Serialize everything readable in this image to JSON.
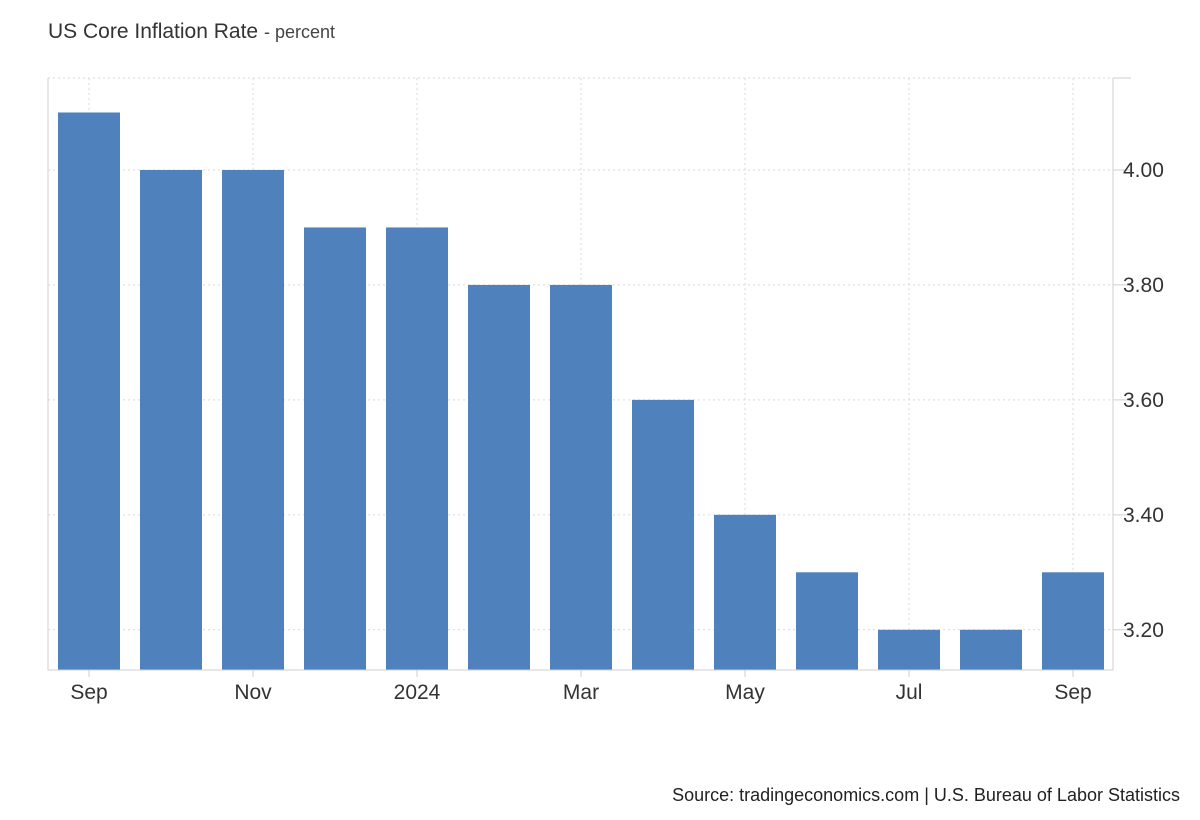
{
  "header": {
    "title": "US Core Inflation Rate",
    "subtitle": "- percent"
  },
  "footer": {
    "source": "Source: tradingeconomics.com | U.S. Bureau of Labor Statistics"
  },
  "chart_data": {
    "type": "bar",
    "title": "US Core Inflation Rate",
    "subtitle": "percent",
    "xlabel": "",
    "ylabel": "",
    "categories": [
      "2023-09",
      "2023-10",
      "2023-11",
      "2023-12",
      "2024-01",
      "2024-02",
      "2024-03",
      "2024-04",
      "2024-05",
      "2024-06",
      "2024-07",
      "2024-08",
      "2024-09"
    ],
    "values": [
      4.1,
      4.0,
      4.0,
      3.9,
      3.9,
      3.8,
      3.8,
      3.6,
      3.4,
      3.3,
      3.2,
      3.2,
      3.3
    ],
    "x_tick_labels": [
      {
        "category": "2023-09",
        "label": "Sep"
      },
      {
        "category": "2023-11",
        "label": "Nov"
      },
      {
        "category": "2024-01",
        "label": "2024"
      },
      {
        "category": "2024-03",
        "label": "Mar"
      },
      {
        "category": "2024-05",
        "label": "May"
      },
      {
        "category": "2024-07",
        "label": "Jul"
      },
      {
        "category": "2024-09",
        "label": "Sep"
      }
    ],
    "y_ticks": [
      3.2,
      3.4,
      3.6,
      3.8,
      4.0
    ],
    "y_tick_labels": [
      "3.20",
      "3.40",
      "3.60",
      "3.80",
      "4.00"
    ],
    "ylim": [
      3.13,
      4.16
    ],
    "y_axis_position": "right",
    "grid": true,
    "bar_color": "#4f81bd",
    "grid_color": "#d9d9d9"
  }
}
